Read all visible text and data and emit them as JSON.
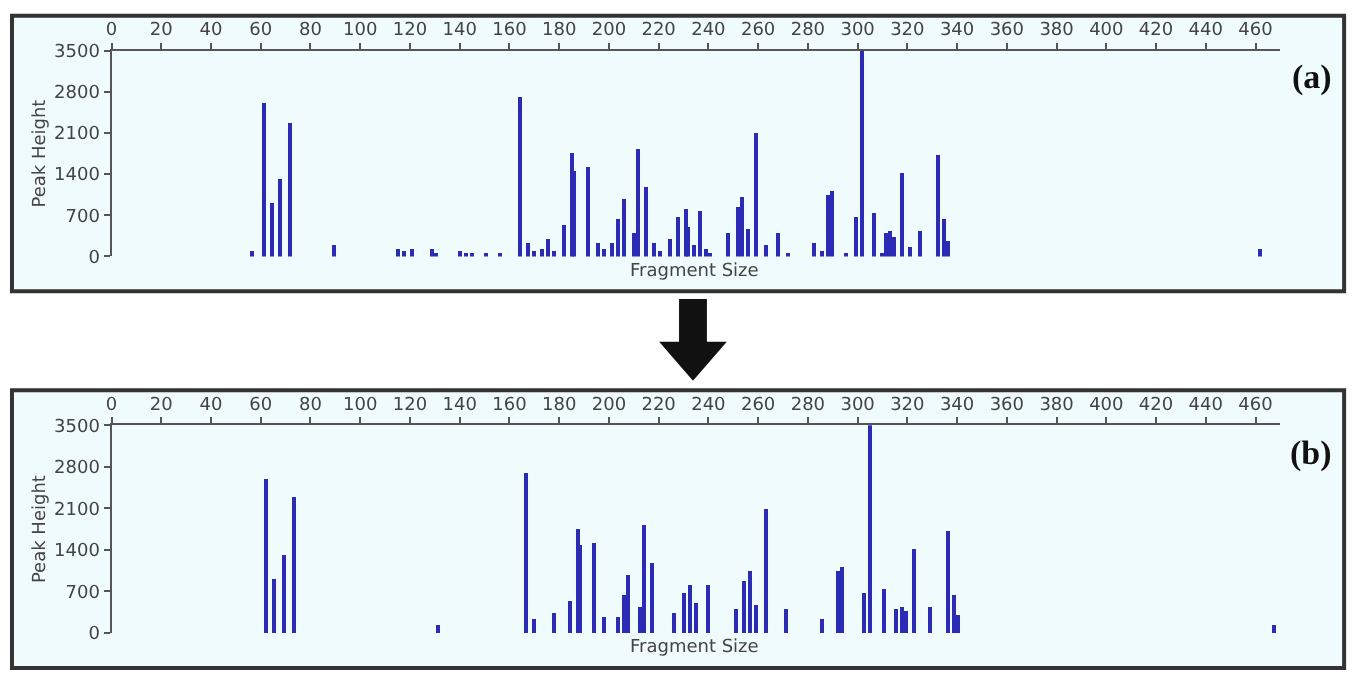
{
  "chart_data": [
    {
      "type": "bar",
      "xlabel": "Fragment Size",
      "ylabel": "Peak Height",
      "annotations": [
        "(a)"
      ],
      "color": "#2b2bb5",
      "x": [
        56.6,
        60.9,
        64.3,
        67.9,
        71.6,
        89.2,
        115.4,
        117.9,
        120.6,
        128.9,
        130.5,
        139.8,
        142.7,
        144.6,
        150.6,
        156,
        164.3,
        167.7,
        170.1,
        172.8,
        175.7,
        178.1,
        182.1,
        185.1,
        186.2,
        191.8,
        195.3,
        198.2,
        201.0,
        203.5,
        205.9,
        209.9,
        211.8,
        214.7,
        217.9,
        220.3,
        224.1,
        227.8,
        230.5,
        232.1,
        234.0,
        236.6,
        239.0,
        240.9,
        247.8,
        251.6,
        253.4,
        255.6,
        259.1,
        263.3,
        267.6,
        271.9,
        282.1,
        285.5,
        288.2,
        289.8,
        294.9,
        298.9,
        301.3,
        306.6,
        309.5,
        311.7,
        313,
        314.9,
        318.1,
        321.3,
        324.8,
        332.2,
        334.4,
        336.5,
        461.8
      ],
      "values": [
        90,
        2610,
        910,
        1310,
        2270,
        190,
        140,
        100,
        130,
        130,
        80,
        110,
        80,
        70,
        40,
        60,
        2720,
        230,
        90,
        140,
        310,
        110,
        530,
        1760,
        1470,
        1520,
        250,
        140,
        250,
        640,
        970,
        420,
        1830,
        1180,
        220,
        90,
        310,
        660,
        810,
        500,
        200,
        790,
        130,
        40,
        420,
        860,
        1020,
        460,
        2090,
        200,
        420,
        70,
        220,
        110,
        1050,
        1120,
        30,
        660,
        3500,
        740,
        60,
        420,
        430,
        340,
        1420,
        160,
        430,
        1730,
        630,
        280,
        120
      ],
      "xlim": [
        0,
        470
      ],
      "xticks": [
        0,
        20,
        40,
        60,
        80,
        100,
        120,
        140,
        160,
        180,
        200,
        220,
        240,
        260,
        280,
        300,
        320,
        340,
        360,
        380,
        400,
        420,
        440,
        460
      ],
      "ylim": [
        0,
        3500
      ],
      "yticks": [
        0,
        700,
        1400,
        2100,
        2800,
        3500
      ],
      "grid": false
    },
    {
      "type": "bar",
      "xlabel": "Fragment Size",
      "ylabel": "Peak Height",
      "annotations": [
        "(b)"
      ],
      "color": "#2b2bb5",
      "x": [
        61.8,
        65.5,
        69.3,
        73.0,
        131.1,
        166.5,
        169.8,
        178.1,
        184.5,
        187.5,
        188.6,
        194.2,
        198.0,
        203.4,
        205.6,
        207.8,
        212.1,
        214.2,
        216.9,
        226.3,
        230.0,
        232.4,
        235.0,
        239.9,
        250.8,
        254.6,
        256.8,
        258.9,
        262.7,
        271.3,
        285.5,
        291.7,
        293.3,
        302.7,
        305.2,
        310.5,
        315.6,
        317.5,
        319.1,
        322.3,
        329.3,
        336.6,
        338.5,
        340.6,
        467.1
      ],
      "values": [
        2590,
        920,
        1300,
        2270,
        140,
        2700,
        240,
        320,
        540,
        1750,
        1480,
        1510,
        250,
        270,
        640,
        970,
        420,
        1820,
        1180,
        320,
        660,
        810,
        500,
        800,
        410,
        870,
        1030,
        470,
        2080,
        410,
        230,
        1030,
        1120,
        660,
        3500,
        730,
        410,
        430,
        360,
        1420,
        430,
        1720,
        630,
        300,
        140
      ],
      "xlim": [
        0,
        470
      ],
      "xticks": [
        0,
        20,
        40,
        60,
        80,
        100,
        120,
        140,
        160,
        180,
        200,
        220,
        240,
        260,
        280,
        300,
        320,
        340,
        360,
        380,
        400,
        420,
        440,
        460
      ],
      "ylim": [
        0,
        3500
      ],
      "yticks": [
        0,
        700,
        1400,
        2100,
        2800,
        3500
      ],
      "grid": false
    }
  ]
}
